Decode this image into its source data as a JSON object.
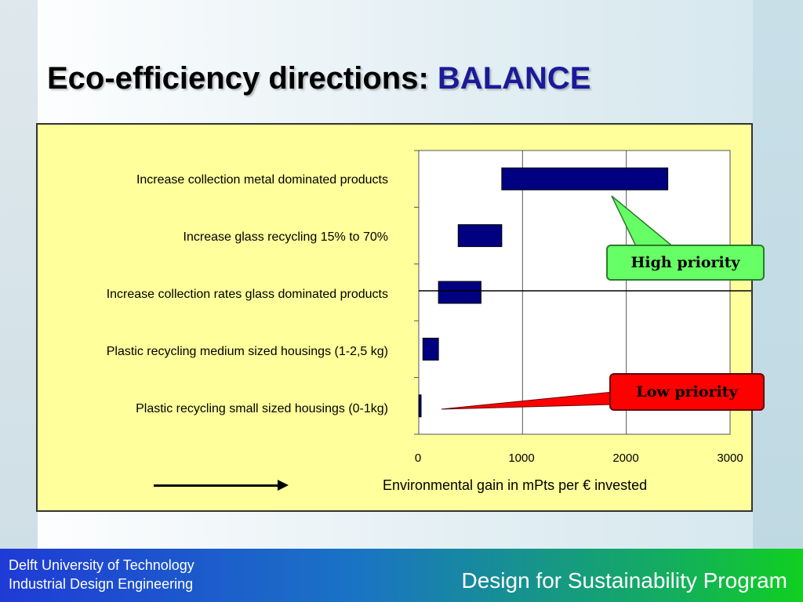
{
  "slide": {
    "title_main": "Eco-efficiency directions:",
    "title_accent": "BALANCE"
  },
  "chart_data": {
    "type": "bar",
    "orientation": "horizontal",
    "categories": [
      "Increase collection metal dominated products",
      "Increase glass recycling 15% to 70%",
      "Increase collection rates glass dominated products",
      "Plastic recycling medium sized housings (1-2,5 kg)",
      "Plastic recycling small sized housings (0-1kg)"
    ],
    "ranges": [
      [
        800,
        2400
      ],
      [
        380,
        800
      ],
      [
        190,
        600
      ],
      [
        40,
        190
      ],
      [
        0,
        20
      ]
    ],
    "xlabel": "Environmental gain in mPts per € invested",
    "xlim": [
      0,
      3000
    ],
    "xticks": [
      "0",
      "1000",
      "2000",
      "3000"
    ],
    "grid": "vertical",
    "bar_color": "#000080",
    "annotations": [
      {
        "text": "High priority",
        "color": "#66ff66",
        "points_to": "Increase collection metal dominated products"
      },
      {
        "text": "Low priority",
        "color": "#ff0000",
        "points_to": "Plastic recycling small sized housings (0-1kg)"
      }
    ]
  },
  "footer": {
    "university": "Delft University of Technology",
    "faculty": "Industrial Design Engineering",
    "program": "Design for Sustainability Program"
  }
}
